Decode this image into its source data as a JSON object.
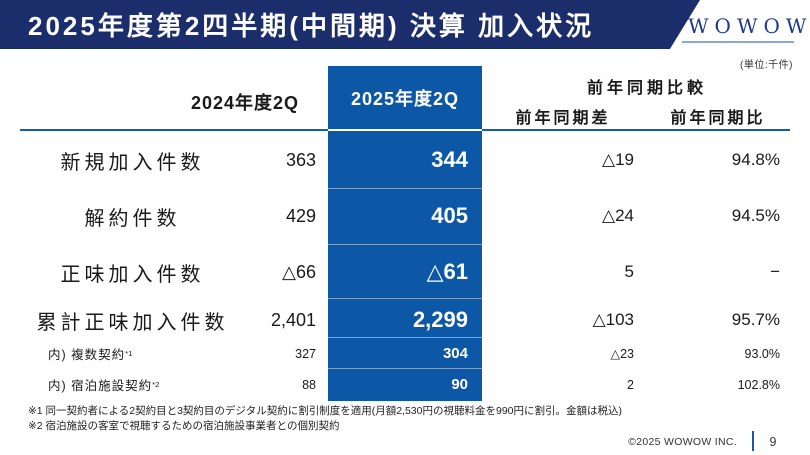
{
  "header": {
    "title": "2025年度第2四半期(中間期) 決算 加入状況",
    "logo": "WOWOW",
    "unit_note": "(単位:千件)"
  },
  "colors": {
    "title_bar_navy": "#1c2d6c",
    "highlight_column_blue": "#0d57a7",
    "rule_blue": "#1659b0",
    "logo_blue": "#1f3a8d"
  },
  "table": {
    "col_2024": "2024年度2Q",
    "col_2025": "2025年度2Q",
    "col_yoy_group": "前年同期比較",
    "col_yoy_diff": "前年同期差",
    "col_yoy_ratio": "前年同期比",
    "rows": [
      {
        "label": "新規加入件数",
        "sup": "",
        "y2024": "363",
        "y2025": "344",
        "diff": "△19",
        "ratio": "94.8%"
      },
      {
        "label": "解約件数",
        "sup": "",
        "y2024": "429",
        "y2025": "405",
        "diff": "△24",
        "ratio": "94.5%"
      },
      {
        "label": "正味加入件数",
        "sup": "",
        "y2024": "△66",
        "y2025": "△61",
        "diff": "5",
        "ratio": "−"
      },
      {
        "label": "累計正味加入件数",
        "sup": "",
        "y2024": "2,401",
        "y2025": "2,299",
        "diff": "△103",
        "ratio": "95.7%"
      },
      {
        "label": "内) 複数契約",
        "sup": "*1",
        "y2024": "327",
        "y2025": "304",
        "diff": "△23",
        "ratio": "93.0%"
      },
      {
        "label": "内) 宿泊施設契約",
        "sup": "*2",
        "y2024": "88",
        "y2025": "90",
        "diff": "2",
        "ratio": "102.8%"
      }
    ]
  },
  "footnotes": [
    "※1 同一契約者による2契約目と3契約目のデジタル契約に割引制度を適用(月額2,530円の視聴料金を990円に割引。金額は税込)",
    "※2 宿泊施設の客室で視聴するための宿泊施設事業者との個別契約"
  ],
  "footer": {
    "copyright": "©2025 WOWOW INC.",
    "page": "9"
  }
}
